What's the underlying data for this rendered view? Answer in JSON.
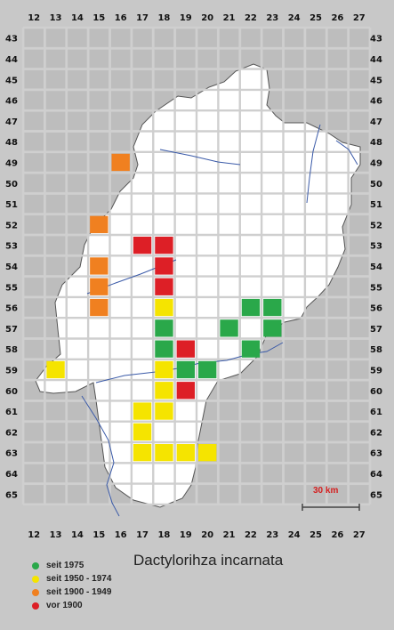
{
  "title": "Dactylorihza incarnata",
  "scale_label": "30 km",
  "grid": {
    "col_labels": [
      "12",
      "13",
      "14",
      "15",
      "16",
      "17",
      "18",
      "19",
      "20",
      "21",
      "22",
      "23",
      "24",
      "25",
      "26",
      "27"
    ],
    "row_labels": [
      "43",
      "44",
      "45",
      "46",
      "47",
      "48",
      "49",
      "50",
      "51",
      "52",
      "53",
      "54",
      "55",
      "56",
      "57",
      "58",
      "59",
      "60",
      "61",
      "62",
      "63",
      "64",
      "65"
    ]
  },
  "legend": [
    {
      "label": "seit 1975",
      "color": "#2aa84a"
    },
    {
      "label": "seit 1950 - 1974",
      "color": "#f5e400"
    },
    {
      "label": "seit 1900 - 1949",
      "color": "#f08020"
    },
    {
      "label": "vor 1900",
      "color": "#dd1f26"
    }
  ],
  "records": [
    {
      "col": 16,
      "row": 49,
      "period": 2
    },
    {
      "col": 15,
      "row": 52,
      "period": 2
    },
    {
      "col": 15,
      "row": 54,
      "period": 2
    },
    {
      "col": 15,
      "row": 55,
      "period": 2
    },
    {
      "col": 15,
      "row": 56,
      "period": 2
    },
    {
      "col": 17,
      "row": 53,
      "period": 3
    },
    {
      "col": 18,
      "row": 53,
      "period": 3
    },
    {
      "col": 18,
      "row": 54,
      "period": 3
    },
    {
      "col": 18,
      "row": 55,
      "period": 3
    },
    {
      "col": 19,
      "row": 58,
      "period": 3
    },
    {
      "col": 19,
      "row": 60,
      "period": 3
    },
    {
      "col": 18,
      "row": 56,
      "period": 1
    },
    {
      "col": 13,
      "row": 59,
      "period": 1
    },
    {
      "col": 18,
      "row": 59,
      "period": 1
    },
    {
      "col": 18,
      "row": 60,
      "period": 1
    },
    {
      "col": 17,
      "row": 61,
      "period": 1
    },
    {
      "col": 18,
      "row": 61,
      "period": 1
    },
    {
      "col": 17,
      "row": 62,
      "period": 1
    },
    {
      "col": 17,
      "row": 63,
      "period": 1
    },
    {
      "col": 18,
      "row": 63,
      "period": 1
    },
    {
      "col": 19,
      "row": 63,
      "period": 1
    },
    {
      "col": 20,
      "row": 63,
      "period": 1
    },
    {
      "col": 18,
      "row": 57,
      "period": 0
    },
    {
      "col": 18,
      "row": 58,
      "period": 0
    },
    {
      "col": 19,
      "row": 59,
      "period": 0
    },
    {
      "col": 20,
      "row": 59,
      "period": 0
    },
    {
      "col": 21,
      "row": 57,
      "period": 0
    },
    {
      "col": 22,
      "row": 56,
      "period": 0
    },
    {
      "col": 23,
      "row": 56,
      "period": 0
    },
    {
      "col": 23,
      "row": 57,
      "period": 0
    },
    {
      "col": 22,
      "row": 58,
      "period": 0
    }
  ]
}
